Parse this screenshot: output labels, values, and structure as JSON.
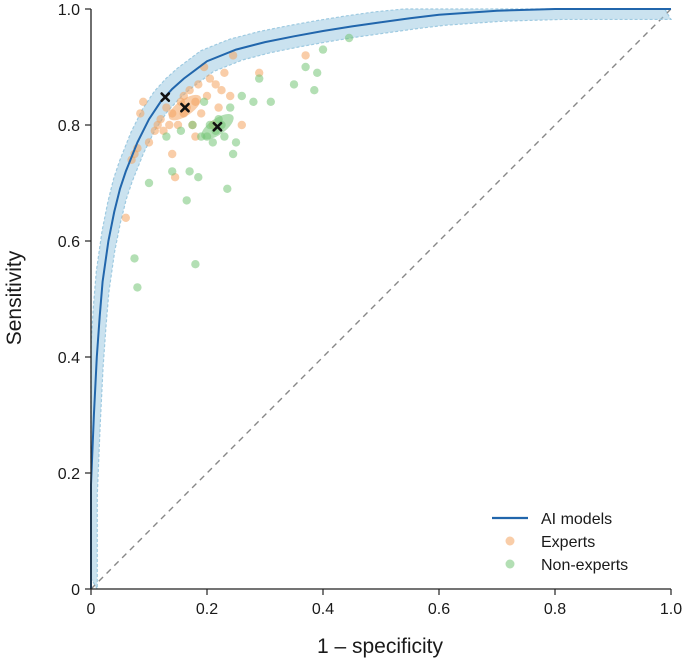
{
  "chart_data": {
    "type": "scatter",
    "xlabel": "1 – specificity",
    "ylabel": "Sensitivity",
    "xlim": [
      0,
      1.0
    ],
    "ylim": [
      0,
      1.0
    ],
    "x_ticks": [
      "0",
      "0.2",
      "0.4",
      "0.6",
      "0.8",
      "1.0"
    ],
    "y_ticks": [
      "0",
      "0.2",
      "0.4",
      "0.6",
      "0.8",
      "1.0"
    ],
    "grid": false,
    "legend_position": "bottom-right",
    "colors": {
      "ai_models": "#2166ac",
      "ai_band": "#9ecae1",
      "experts": "#f4a460",
      "non_experts": "#74c476",
      "operating_point": "#111111",
      "diagonal": "#888888"
    },
    "legend": [
      "AI models",
      "Experts",
      "Non-experts"
    ],
    "series": [
      {
        "name": "AI models",
        "kind": "roc_curve",
        "points": [
          [
            0,
            0
          ],
          [
            0,
            0.18
          ],
          [
            0.005,
            0.3
          ],
          [
            0.01,
            0.4
          ],
          [
            0.015,
            0.47
          ],
          [
            0.02,
            0.53
          ],
          [
            0.03,
            0.6
          ],
          [
            0.04,
            0.65
          ],
          [
            0.05,
            0.69
          ],
          [
            0.06,
            0.72
          ],
          [
            0.08,
            0.77
          ],
          [
            0.1,
            0.81
          ],
          [
            0.12,
            0.84
          ],
          [
            0.14,
            0.862
          ],
          [
            0.16,
            0.88
          ],
          [
            0.18,
            0.895
          ],
          [
            0.2,
            0.91
          ],
          [
            0.25,
            0.93
          ],
          [
            0.3,
            0.943
          ],
          [
            0.35,
            0.953
          ],
          [
            0.4,
            0.962
          ],
          [
            0.45,
            0.97
          ],
          [
            0.5,
            0.977
          ],
          [
            0.55,
            0.984
          ],
          [
            0.6,
            0.99
          ],
          [
            0.7,
            0.997
          ],
          [
            0.8,
            1.0
          ],
          [
            1.0,
            1.0
          ]
        ],
        "band_halfwidth": 0.018,
        "operating_point": [
          0.128,
          0.848
        ]
      },
      {
        "name": "Experts",
        "kind": "scatter",
        "points": [
          [
            0.06,
            0.64
          ],
          [
            0.07,
            0.74
          ],
          [
            0.075,
            0.75
          ],
          [
            0.08,
            0.76
          ],
          [
            0.085,
            0.82
          ],
          [
            0.09,
            0.84
          ],
          [
            0.1,
            0.77
          ],
          [
            0.11,
            0.79
          ],
          [
            0.115,
            0.8
          ],
          [
            0.12,
            0.81
          ],
          [
            0.125,
            0.79
          ],
          [
            0.13,
            0.83
          ],
          [
            0.135,
            0.8
          ],
          [
            0.14,
            0.75
          ],
          [
            0.14,
            0.82
          ],
          [
            0.145,
            0.71
          ],
          [
            0.15,
            0.8
          ],
          [
            0.155,
            0.84
          ],
          [
            0.16,
            0.82
          ],
          [
            0.16,
            0.85
          ],
          [
            0.165,
            0.83
          ],
          [
            0.17,
            0.86
          ],
          [
            0.175,
            0.8
          ],
          [
            0.18,
            0.78
          ],
          [
            0.18,
            0.84
          ],
          [
            0.185,
            0.87
          ],
          [
            0.19,
            0.82
          ],
          [
            0.195,
            0.9
          ],
          [
            0.2,
            0.85
          ],
          [
            0.205,
            0.88
          ],
          [
            0.21,
            0.8
          ],
          [
            0.215,
            0.87
          ],
          [
            0.22,
            0.83
          ],
          [
            0.225,
            0.86
          ],
          [
            0.23,
            0.89
          ],
          [
            0.24,
            0.85
          ],
          [
            0.245,
            0.92
          ],
          [
            0.26,
            0.8
          ],
          [
            0.29,
            0.89
          ],
          [
            0.37,
            0.92
          ]
        ],
        "operating_point": [
          0.162,
          0.83
        ]
      },
      {
        "name": "Non-experts",
        "kind": "scatter",
        "points": [
          [
            0.075,
            0.57
          ],
          [
            0.08,
            0.52
          ],
          [
            0.1,
            0.7
          ],
          [
            0.13,
            0.78
          ],
          [
            0.14,
            0.72
          ],
          [
            0.155,
            0.79
          ],
          [
            0.165,
            0.67
          ],
          [
            0.17,
            0.72
          ],
          [
            0.175,
            0.8
          ],
          [
            0.18,
            0.56
          ],
          [
            0.185,
            0.71
          ],
          [
            0.19,
            0.78
          ],
          [
            0.195,
            0.84
          ],
          [
            0.2,
            0.78
          ],
          [
            0.205,
            0.8
          ],
          [
            0.21,
            0.77
          ],
          [
            0.215,
            0.79
          ],
          [
            0.22,
            0.81
          ],
          [
            0.225,
            0.8
          ],
          [
            0.23,
            0.78
          ],
          [
            0.235,
            0.69
          ],
          [
            0.24,
            0.83
          ],
          [
            0.245,
            0.75
          ],
          [
            0.25,
            0.77
          ],
          [
            0.26,
            0.85
          ],
          [
            0.28,
            0.84
          ],
          [
            0.29,
            0.88
          ],
          [
            0.31,
            0.84
          ],
          [
            0.35,
            0.87
          ],
          [
            0.37,
            0.9
          ],
          [
            0.385,
            0.86
          ],
          [
            0.39,
            0.89
          ],
          [
            0.4,
            0.93
          ],
          [
            0.445,
            0.95
          ]
        ],
        "operating_point": [
          0.218,
          0.797
        ]
      }
    ]
  }
}
